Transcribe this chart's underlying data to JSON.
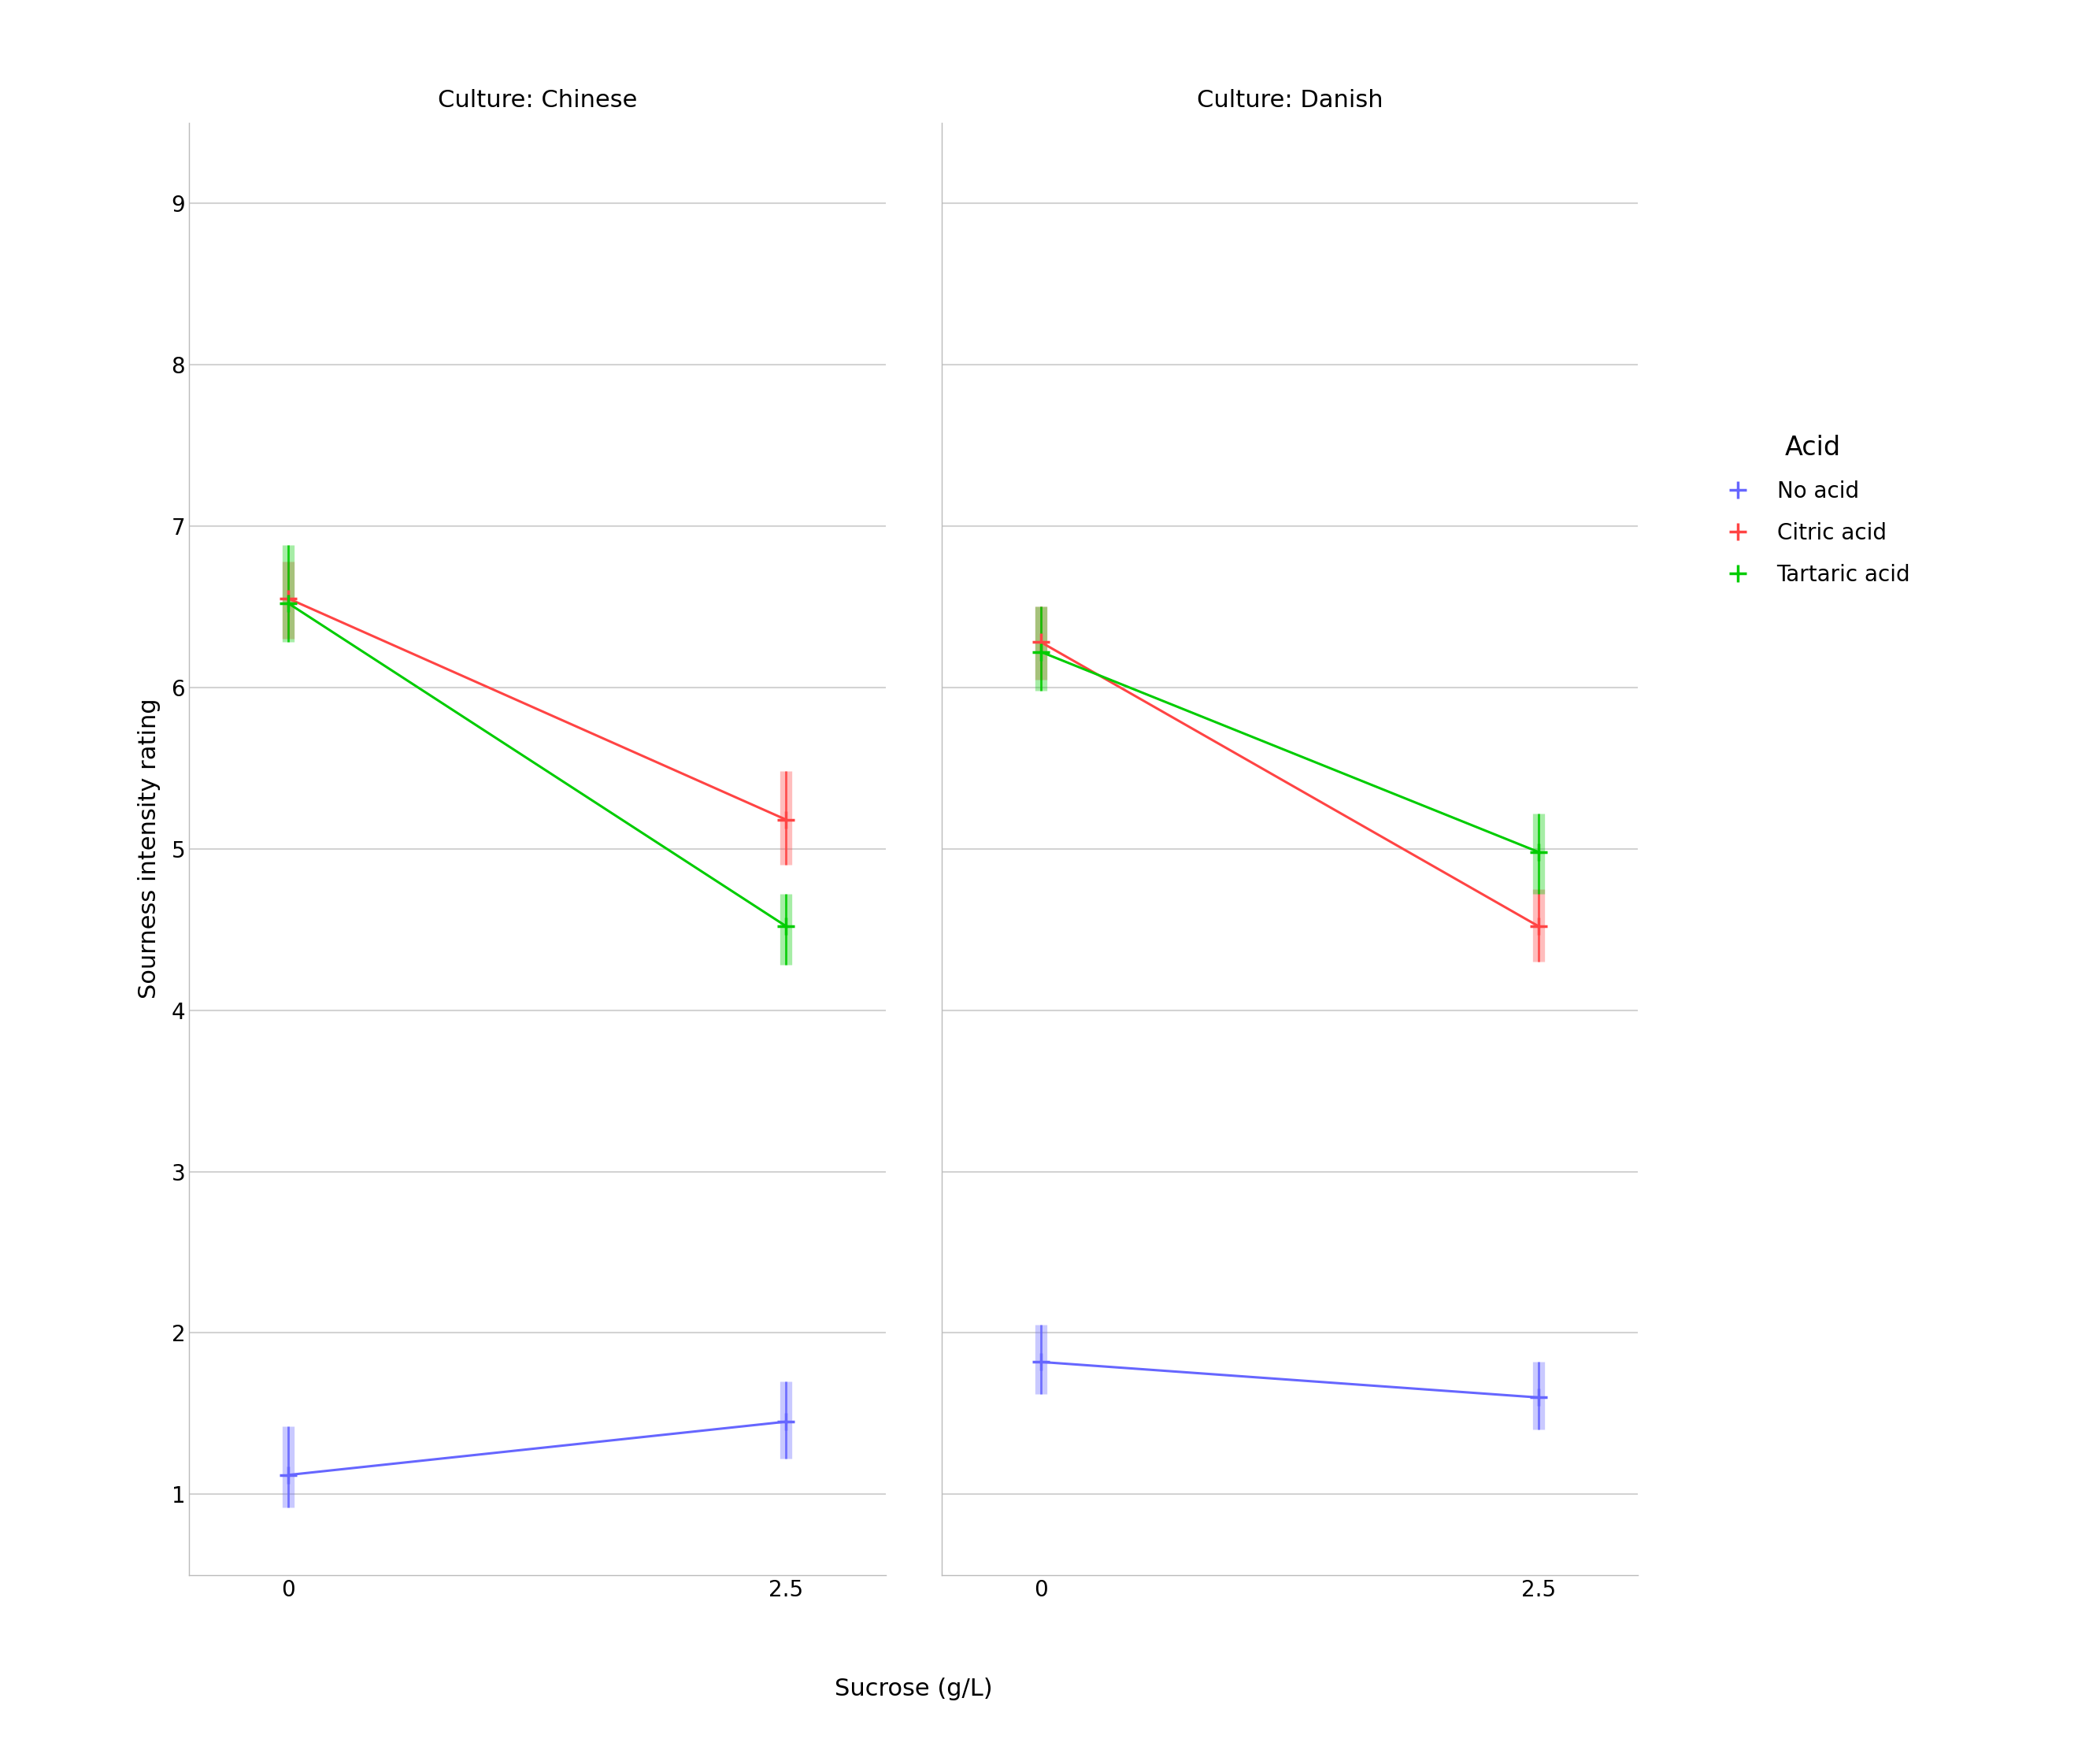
{
  "panels": [
    {
      "title": "Culture: Chinese",
      "series": [
        {
          "label": "No acid",
          "color": "#6666FF",
          "x": [
            0,
            2.5
          ],
          "y": [
            1.12,
            1.45
          ],
          "ci_low": [
            0.92,
            1.22
          ],
          "ci_high": [
            1.42,
            1.7
          ]
        },
        {
          "label": "Citric acid",
          "color": "#FF4444",
          "x": [
            0,
            2.5
          ],
          "y": [
            6.55,
            5.18
          ],
          "ci_low": [
            6.3,
            4.9
          ],
          "ci_high": [
            6.78,
            5.48
          ]
        },
        {
          "label": "Tartaric acid",
          "color": "#00CC00",
          "x": [
            0,
            2.5
          ],
          "y": [
            6.52,
            4.52
          ],
          "ci_low": [
            6.28,
            4.28
          ],
          "ci_high": [
            6.88,
            4.72
          ]
        }
      ]
    },
    {
      "title": "Culture: Danish",
      "series": [
        {
          "label": "No acid",
          "color": "#6666FF",
          "x": [
            0,
            2.5
          ],
          "y": [
            1.82,
            1.6
          ],
          "ci_low": [
            1.62,
            1.4
          ],
          "ci_high": [
            2.05,
            1.82
          ]
        },
        {
          "label": "Citric acid",
          "color": "#FF4444",
          "x": [
            0,
            2.5
          ],
          "y": [
            6.28,
            4.52
          ],
          "ci_low": [
            6.05,
            4.3
          ],
          "ci_high": [
            6.5,
            4.75
          ]
        },
        {
          "label": "Tartaric acid",
          "color": "#00CC00",
          "x": [
            0,
            2.5
          ],
          "y": [
            6.22,
            4.98
          ],
          "ci_low": [
            5.98,
            4.72
          ],
          "ci_high": [
            6.5,
            5.22
          ]
        }
      ]
    }
  ],
  "xlabel": "Sucrose (g/L)",
  "ylabel": "Sourness intensity rating",
  "ylim": [
    0.5,
    9.5
  ],
  "yticks": [
    1,
    2,
    3,
    4,
    5,
    6,
    7,
    8,
    9
  ],
  "xticks": [
    0,
    2.5
  ],
  "xlim": [
    -0.5,
    3.0
  ],
  "background_color": "#FFFFFF",
  "panel_bg": "#FFFFFF",
  "grid_color": "#D3D3D3",
  "legend_title": "Acid",
  "legend_labels": [
    "No acid",
    "Citric acid",
    "Tartaric acid"
  ],
  "legend_colors": [
    "#6666FF",
    "#FF4444",
    "#00CC00"
  ],
  "title_fontsize": 22,
  "axis_label_fontsize": 22,
  "tick_fontsize": 20,
  "legend_fontsize": 20,
  "legend_title_fontsize": 24
}
